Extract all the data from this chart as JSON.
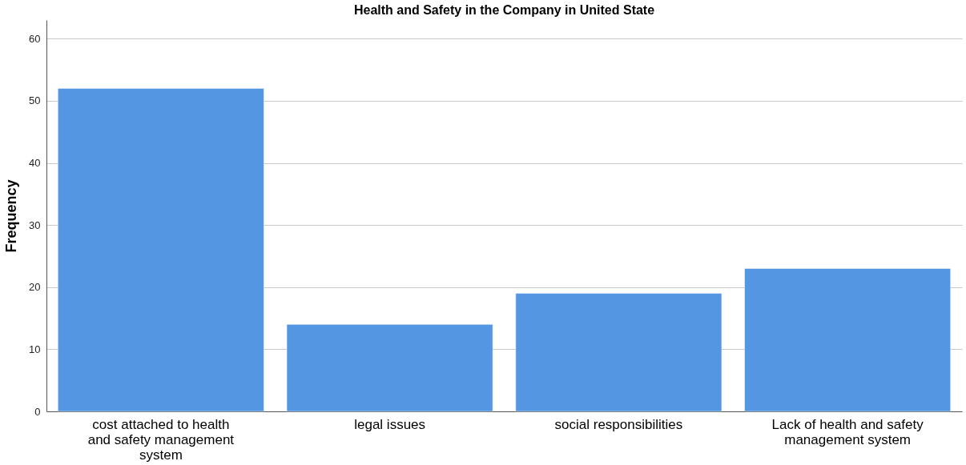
{
  "chart_data": {
    "type": "bar",
    "title": "Health and Safety in the Company in United State",
    "ylabel": "Frequency",
    "categories": [
      "cost attached to health and safety management system",
      "legal issues",
      "social responsibilities",
      "Lack of health and safety management system"
    ],
    "values": [
      52,
      14,
      19,
      23
    ],
    "color": "#5596e3",
    "ylim": [
      0,
      63
    ],
    "yticks": [
      0,
      10,
      20,
      30,
      40,
      50,
      60
    ],
    "grid": "y"
  }
}
